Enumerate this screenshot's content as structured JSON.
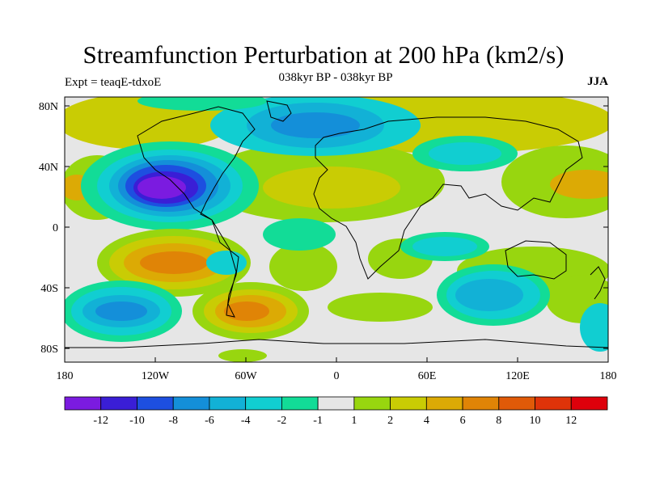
{
  "title": "Streamfunction Perturbation at 200 hPa (km2/s)",
  "expt_label": "Expt = teaqE-tdxoE",
  "period_label": "038kyr BP - 038kyr BP",
  "season_label": "JJA",
  "lat_ticks": [
    "80N",
    "40N",
    "0",
    "40S",
    "80S"
  ],
  "lon_ticks": [
    "180",
    "120W",
    "60W",
    "0",
    "60E",
    "120E",
    "180"
  ],
  "colorbar": {
    "labels": [
      "-12",
      "-10",
      "-8",
      "-6",
      "-4",
      "-2",
      "-1",
      "1",
      "2",
      "4",
      "6",
      "8",
      "10",
      "12"
    ],
    "colors": [
      "#7b1be0",
      "#3a1ed6",
      "#1d4fe0",
      "#148fd9",
      "#12b1d6",
      "#11ced1",
      "#12dc97",
      "#e6e6e6",
      "#98d60f",
      "#c9cc04",
      "#dcaa05",
      "#e08406",
      "#e05a08",
      "#df3309",
      "#de000b"
    ]
  },
  "land_color": "#e6e6e6"
}
